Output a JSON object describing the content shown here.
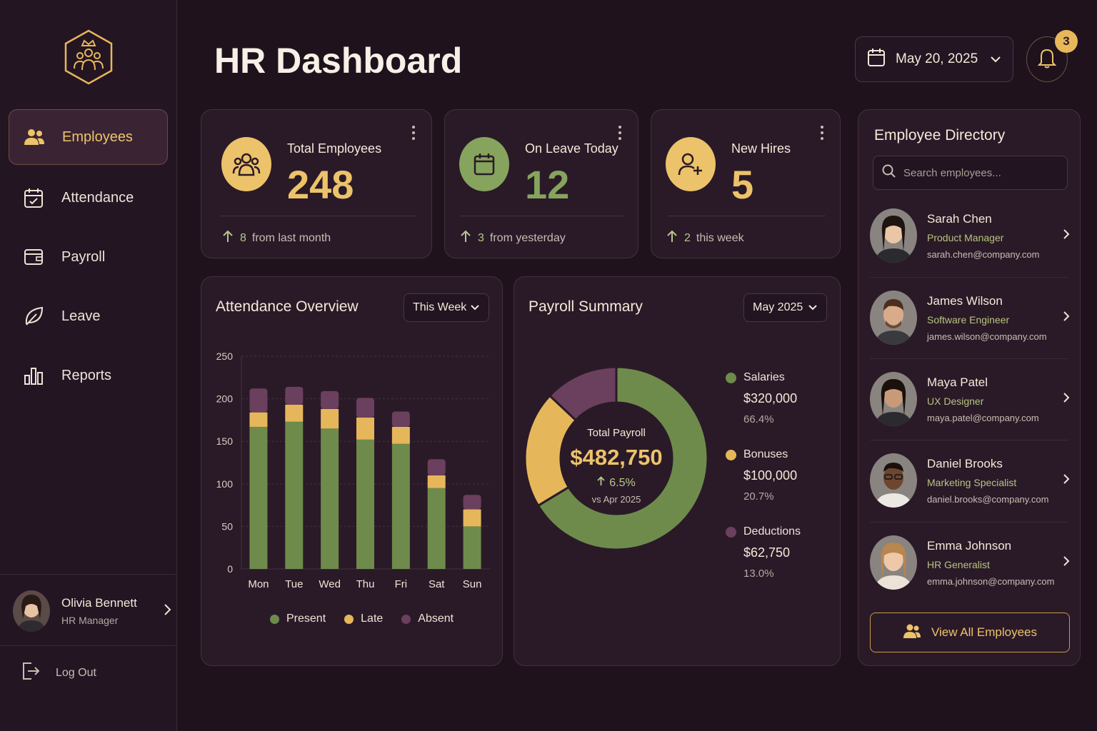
{
  "colors": {
    "gold": "#ecc36a",
    "green": "#6e8b4b",
    "plum": "#6b3f5e",
    "bg": "#1f121d"
  },
  "sidebar": {
    "logo_icon": "team-crown-icon",
    "items": [
      {
        "label": "Employees",
        "icon": "people-icon",
        "active": true
      },
      {
        "label": "Attendance",
        "icon": "calendar-check-icon",
        "active": false
      },
      {
        "label": "Payroll",
        "icon": "wallet-icon",
        "active": false
      },
      {
        "label": "Leave",
        "icon": "leaf-icon",
        "active": false
      },
      {
        "label": "Reports",
        "icon": "bar-chart-icon",
        "active": false
      }
    ],
    "profile": {
      "name": "Olivia Bennett",
      "role": "HR Manager"
    },
    "logout_label": "Log Out"
  },
  "header": {
    "title": "HR Dashboard",
    "date": "May 20, 2025",
    "notification_count": "3"
  },
  "stats": [
    {
      "label": "Total Employees",
      "value": "248",
      "delta": "8",
      "delta_text": "from last month",
      "icon": "people-icon",
      "color": "#ecc36a"
    },
    {
      "label": "On Leave Today",
      "value": "12",
      "delta": "3",
      "delta_text": "from yesterday",
      "icon": "calendar-icon",
      "color": "#86a45e"
    },
    {
      "label": "New Hires",
      "value": "5",
      "delta": "2",
      "delta_text": "this week",
      "icon": "user-plus-icon",
      "color": "#ecc36a"
    }
  ],
  "attendance": {
    "title": "Attendance Overview",
    "period": "This Week",
    "legend": [
      "Present",
      "Late",
      "Absent"
    ]
  },
  "payroll": {
    "title": "Payroll Summary",
    "period": "May 2025",
    "center_label": "Total Payroll",
    "center_value": "$482,750",
    "change": "6.5%",
    "compare": "vs Apr 2025",
    "items": [
      {
        "name": "Salaries",
        "amount": "$320,000",
        "percent": "66.4%"
      },
      {
        "name": "Bonuses",
        "amount": "$100,000",
        "percent": "20.7%"
      },
      {
        "name": "Deductions",
        "amount": "$62,750",
        "percent": "13.0%"
      }
    ]
  },
  "directory": {
    "title": "Employee Directory",
    "search_placeholder": "Search employees...",
    "employees": [
      {
        "name": "Sarah Chen",
        "role": "Product Manager",
        "email": "sarah.chen@company.com"
      },
      {
        "name": "James Wilson",
        "role": "Software Engineer",
        "email": "james.wilson@company.com"
      },
      {
        "name": "Maya Patel",
        "role": "UX Designer",
        "email": "maya.patel@company.com"
      },
      {
        "name": "Daniel Brooks",
        "role": "Marketing Specialist",
        "email": "daniel.brooks@company.com"
      },
      {
        "name": "Emma Johnson",
        "role": "HR Generalist",
        "email": "emma.johnson@company.com"
      }
    ],
    "view_all_label": "View All Employees"
  },
  "chart_data": [
    {
      "type": "bar",
      "stacked": true,
      "categories": [
        "Mon",
        "Tue",
        "Wed",
        "Thu",
        "Fri",
        "Sat",
        "Sun"
      ],
      "series": [
        {
          "name": "Present",
          "values": [
            167,
            173,
            165,
            152,
            147,
            95,
            50
          ],
          "color": "#6e8b4b"
        },
        {
          "name": "Late",
          "values": [
            17,
            20,
            23,
            26,
            20,
            15,
            20
          ],
          "color": "#e6b75a"
        },
        {
          "name": "Absent",
          "values": [
            28,
            21,
            21,
            23,
            18,
            19,
            17
          ],
          "color": "#6b3f5e"
        }
      ],
      "ylim": [
        0,
        250
      ],
      "yticks": [
        0,
        50,
        100,
        150,
        200,
        250
      ],
      "grid": true,
      "legend": "bottom"
    },
    {
      "type": "pie",
      "donut": true,
      "labels": [
        "Salaries",
        "Bonuses",
        "Deductions"
      ],
      "values": [
        66.4,
        20.7,
        13.0
      ],
      "colors": [
        "#6e8b4b",
        "#e6b75a",
        "#6b3f5e"
      ],
      "legend": "right"
    }
  ]
}
